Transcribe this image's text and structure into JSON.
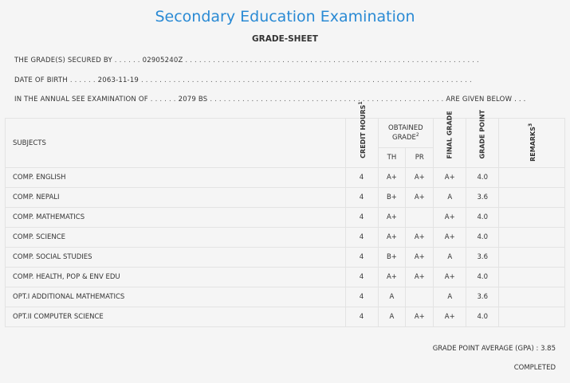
{
  "header": {
    "title": "Secondary Education Examination",
    "subtitle": "GRADE-SHEET"
  },
  "info": {
    "grades_label": "THE GRADE(S) SECURED BY",
    "grades_value": "02905240Z",
    "dob_label": "DATE OF BIRTH",
    "dob_value": "2063-11-19",
    "exam_label": "IN THE ANNUAL SEE EXAMINATION OF",
    "exam_value": "2079 BS",
    "exam_suffix": "ARE GIVEN BELOW . . ."
  },
  "table": {
    "headers": {
      "subjects": "SUBJECTS",
      "credit_hours": "CREDIT HOURS",
      "credit_sup": "1",
      "obtained_grade": "OBTAINED GRADE",
      "obtained_sup": "2",
      "th": "TH",
      "pr": "PR",
      "final_grade": "FINAL GRADE",
      "grade_point": "GRADE POINT",
      "remarks": "REMARKS",
      "remarks_sup": "3"
    },
    "rows": [
      {
        "subject": "COMP. ENGLISH",
        "credit": "4",
        "th": "A+",
        "pr": "A+",
        "final": "A+",
        "gp": "4.0"
      },
      {
        "subject": "COMP. NEPALI",
        "credit": "4",
        "th": "B+",
        "pr": "A+",
        "final": "A",
        "gp": "3.6"
      },
      {
        "subject": "COMP. MATHEMATICS",
        "credit": "4",
        "th": "A+",
        "pr": "",
        "final": "A+",
        "gp": "4.0"
      },
      {
        "subject": "COMP. SCIENCE",
        "credit": "4",
        "th": "A+",
        "pr": "A+",
        "final": "A+",
        "gp": "4.0"
      },
      {
        "subject": "COMP. SOCIAL STUDIES",
        "credit": "4",
        "th": "B+",
        "pr": "A+",
        "final": "A",
        "gp": "3.6"
      },
      {
        "subject": "COMP. HEALTH, POP & ENV EDU",
        "credit": "4",
        "th": "A+",
        "pr": "A+",
        "final": "A+",
        "gp": "4.0"
      },
      {
        "subject": "OPT.I ADDITIONAL MATHEMATICS",
        "credit": "4",
        "th": "A",
        "pr": "",
        "final": "A",
        "gp": "3.6"
      },
      {
        "subject": "OPT.II COMPUTER SCIENCE",
        "credit": "4",
        "th": "A",
        "pr": "A+",
        "final": "A+",
        "gp": "4.0"
      }
    ]
  },
  "footer": {
    "gpa_text": "GRADE POINT AVERAGE (GPA) : 3.85",
    "status": "COMPLETED"
  }
}
